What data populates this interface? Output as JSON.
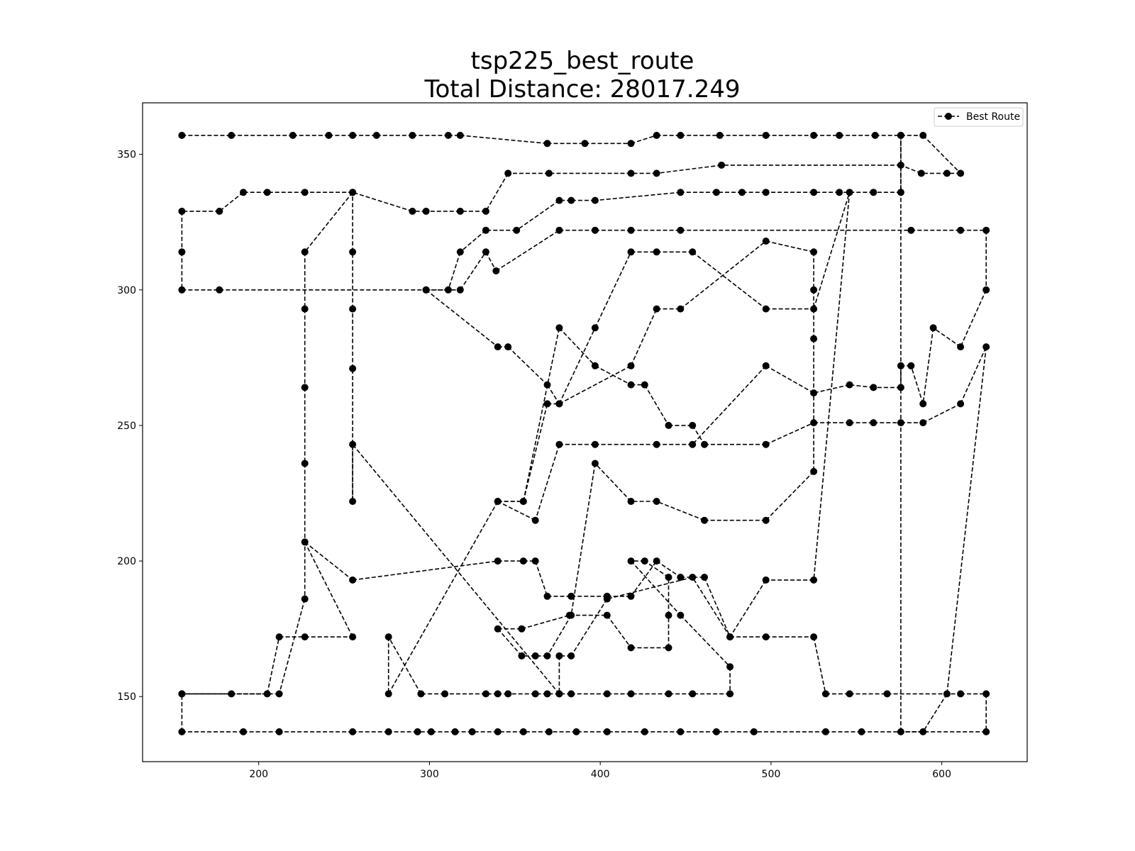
{
  "chart_data": {
    "type": "line",
    "title": "tsp225_best_route",
    "subtitle": "Total Distance: 28017.249",
    "xlabel": "",
    "ylabel": "",
    "xlim": [
      132,
      650
    ],
    "ylim": [
      126,
      369
    ],
    "x_ticks": [
      200,
      300,
      400,
      500,
      600
    ],
    "y_ticks": [
      150,
      200,
      250,
      300,
      350
    ],
    "grid": false,
    "legend": {
      "position": "top-right",
      "entries": [
        "Best Route"
      ]
    },
    "series": [
      {
        "name": "Best Route",
        "color": "#000000",
        "line_style": "dashed",
        "marker": "circle",
        "points": [
          [
            155,
            357
          ],
          [
            184,
            357
          ],
          [
            220,
            357
          ],
          [
            241,
            357
          ],
          [
            255,
            357
          ],
          [
            269,
            357
          ],
          [
            290,
            357
          ],
          [
            311,
            357
          ],
          [
            318,
            357
          ],
          [
            369,
            354
          ],
          [
            391,
            354
          ],
          [
            418,
            354
          ],
          [
            433,
            357
          ],
          [
            447,
            357
          ],
          [
            470,
            357
          ],
          [
            497,
            357
          ],
          [
            525,
            357
          ],
          [
            540,
            357
          ],
          [
            561,
            357
          ],
          [
            576,
            357
          ],
          [
            589,
            357
          ],
          [
            611,
            343
          ],
          [
            603,
            343
          ],
          [
            588,
            343
          ],
          [
            576,
            346
          ],
          [
            471,
            346
          ],
          [
            433,
            343
          ],
          [
            418,
            343
          ],
          [
            370,
            343
          ],
          [
            346,
            343
          ],
          [
            333,
            329
          ],
          [
            318,
            329
          ],
          [
            298,
            329
          ],
          [
            290,
            329
          ],
          [
            255,
            336
          ],
          [
            227,
            336
          ],
          [
            205,
            336
          ],
          [
            191,
            336
          ],
          [
            177,
            329
          ],
          [
            155,
            329
          ],
          [
            155,
            314
          ],
          [
            155,
            300
          ],
          [
            177,
            300
          ],
          [
            298,
            300
          ],
          [
            318,
            300
          ],
          [
            333,
            314
          ],
          [
            339,
            307
          ],
          [
            376,
            322
          ],
          [
            397,
            322
          ],
          [
            418,
            322
          ],
          [
            447,
            322
          ],
          [
            582,
            322
          ],
          [
            611,
            322
          ],
          [
            626,
            322
          ],
          [
            626,
            300
          ],
          [
            611,
            279
          ],
          [
            595,
            286
          ],
          [
            589,
            258
          ],
          [
            582,
            272
          ],
          [
            576,
            272
          ],
          [
            576,
            264
          ],
          [
            560,
            264
          ],
          [
            546,
            265
          ],
          [
            525,
            262
          ],
          [
            497,
            272
          ],
          [
            454,
            243
          ],
          [
            433,
            243
          ],
          [
            397,
            243
          ],
          [
            376,
            243
          ],
          [
            362,
            215
          ],
          [
            340,
            222
          ],
          [
            355,
            222
          ],
          [
            376,
            286
          ],
          [
            397,
            272
          ],
          [
            418,
            265
          ],
          [
            426,
            265
          ],
          [
            440,
            250
          ],
          [
            454,
            250
          ],
          [
            461,
            243
          ],
          [
            497,
            243
          ],
          [
            525,
            251
          ],
          [
            546,
            251
          ],
          [
            560,
            251
          ],
          [
            576,
            251
          ],
          [
            589,
            251
          ],
          [
            611,
            258
          ],
          [
            626,
            279
          ],
          [
            603,
            151
          ],
          [
            589,
            137
          ],
          [
            553,
            137
          ],
          [
            532,
            137
          ],
          [
            490,
            137
          ],
          [
            468,
            137
          ],
          [
            447,
            137
          ],
          [
            426,
            137
          ],
          [
            404,
            137
          ],
          [
            386,
            137
          ],
          [
            370,
            137
          ],
          [
            355,
            137
          ],
          [
            340,
            137
          ],
          [
            325,
            137
          ],
          [
            315,
            137
          ],
          [
            301,
            137
          ],
          [
            293,
            137
          ],
          [
            276,
            137
          ],
          [
            255,
            137
          ],
          [
            212,
            137
          ],
          [
            191,
            137
          ],
          [
            155,
            137
          ],
          [
            155,
            151
          ],
          [
            184,
            151
          ],
          [
            205,
            151
          ],
          [
            212,
            172
          ],
          [
            227,
            172
          ],
          [
            255,
            172
          ],
          [
            227,
            207
          ],
          [
            255,
            193
          ],
          [
            340,
            200
          ],
          [
            355,
            200
          ],
          [
            362,
            200
          ],
          [
            369,
            187
          ],
          [
            383,
            187
          ],
          [
            404,
            187
          ],
          [
            418,
            187
          ],
          [
            433,
            200
          ],
          [
            447,
            194
          ],
          [
            461,
            194
          ],
          [
            476,
            172
          ],
          [
            497,
            172
          ],
          [
            525,
            172
          ],
          [
            532,
            151
          ],
          [
            546,
            151
          ],
          [
            568,
            151
          ],
          [
            611,
            151
          ],
          [
            626,
            151
          ],
          [
            626,
            137
          ],
          [
            576,
            137
          ],
          [
            576,
            357
          ],
          [
            576,
            336
          ],
          [
            560,
            336
          ],
          [
            540,
            336
          ],
          [
            525,
            336
          ],
          [
            497,
            336
          ],
          [
            483,
            336
          ],
          [
            468,
            336
          ],
          [
            447,
            336
          ],
          [
            397,
            333
          ],
          [
            383,
            333
          ],
          [
            376,
            333
          ],
          [
            351,
            322
          ],
          [
            333,
            322
          ],
          [
            318,
            314
          ],
          [
            311,
            300
          ],
          [
            298,
            300
          ],
          [
            340,
            279
          ],
          [
            346,
            279
          ],
          [
            369,
            265
          ],
          [
            376,
            258
          ],
          [
            418,
            272
          ],
          [
            433,
            293
          ],
          [
            447,
            293
          ],
          [
            497,
            318
          ],
          [
            525,
            314
          ],
          [
            525,
            300
          ],
          [
            525,
            282
          ],
          [
            525,
            233
          ],
          [
            497,
            215
          ],
          [
            461,
            215
          ],
          [
            433,
            222
          ],
          [
            418,
            222
          ],
          [
            397,
            236
          ],
          [
            383,
            180
          ],
          [
            369,
            165
          ],
          [
            362,
            165
          ],
          [
            354,
            165
          ],
          [
            340,
            175
          ],
          [
            354,
            175
          ],
          [
            382,
            180
          ],
          [
            404,
            180
          ],
          [
            418,
            168
          ],
          [
            440,
            168
          ],
          [
            440,
            180
          ],
          [
            440,
            194
          ],
          [
            426,
            200
          ],
          [
            418,
            200
          ],
          [
            447,
            180
          ],
          [
            476,
            161
          ],
          [
            476,
            151
          ],
          [
            454,
            151
          ],
          [
            440,
            151
          ],
          [
            418,
            151
          ],
          [
            404,
            151
          ],
          [
            383,
            151
          ],
          [
            376,
            151
          ],
          [
            369,
            151
          ],
          [
            362,
            151
          ],
          [
            346,
            151
          ],
          [
            340,
            151
          ],
          [
            333,
            151
          ],
          [
            309,
            151
          ],
          [
            295,
            151
          ],
          [
            276,
            172
          ],
          [
            276,
            151
          ],
          [
            340,
            222
          ],
          [
            355,
            222
          ],
          [
            369,
            258
          ],
          [
            376,
            258
          ],
          [
            397,
            286
          ],
          [
            418,
            314
          ],
          [
            433,
            314
          ],
          [
            454,
            314
          ],
          [
            497,
            293
          ],
          [
            525,
            293
          ],
          [
            546,
            336
          ],
          [
            525,
            193
          ],
          [
            497,
            193
          ],
          [
            476,
            172
          ],
          [
            454,
            194
          ],
          [
            404,
            186
          ],
          [
            383,
            165
          ],
          [
            376,
            165
          ],
          [
            376,
            151
          ],
          [
            255,
            243
          ],
          [
            255,
            222
          ],
          [
            255,
            271
          ],
          [
            255,
            293
          ],
          [
            255,
            314
          ],
          [
            255,
            336
          ],
          [
            227,
            314
          ],
          [
            227,
            293
          ],
          [
            227,
            264
          ],
          [
            227,
            236
          ],
          [
            227,
            186
          ],
          [
            212,
            151
          ],
          [
            155,
            151
          ]
        ]
      }
    ]
  }
}
